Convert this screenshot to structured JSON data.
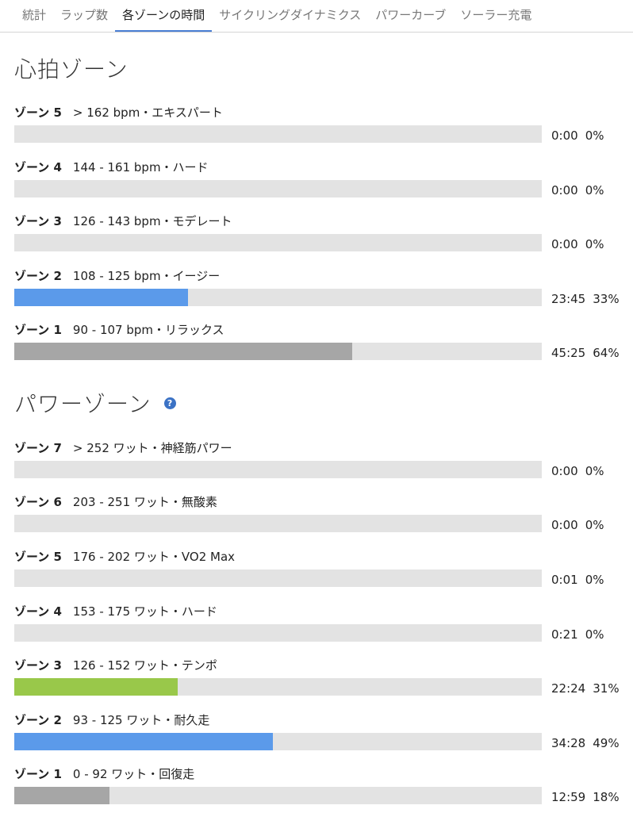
{
  "tabs": [
    {
      "label": "統計",
      "active": false
    },
    {
      "label": "ラップ数",
      "active": false
    },
    {
      "label": "各ゾーンの時間",
      "active": true
    },
    {
      "label": "サイクリングダイナミクス",
      "active": false
    },
    {
      "label": "パワーカーブ",
      "active": false
    },
    {
      "label": "ソーラー充電",
      "active": false
    }
  ],
  "colors": {
    "accent": "#4a7fd4",
    "bar_track": "#e3e3e3",
    "bar_gray": "#a6a6a6",
    "bar_blue": "#5b9aea",
    "bar_green": "#99c84a",
    "help_icon": "#3b72c5"
  },
  "heart_rate": {
    "title": "心拍ゾーン",
    "zones": [
      {
        "name": "ゾーン 5",
        "range": "> 162 bpm・エキスパート",
        "time": "0:00",
        "percent": "0%",
        "fill_fraction": 0.0,
        "color": "#a6a6a6"
      },
      {
        "name": "ゾーン 4",
        "range": "144 - 161 bpm・ハード",
        "time": "0:00",
        "percent": "0%",
        "fill_fraction": 0.0,
        "color": "#a6a6a6"
      },
      {
        "name": "ゾーン 3",
        "range": "126 - 143 bpm・モデレート",
        "time": "0:00",
        "percent": "0%",
        "fill_fraction": 0.0,
        "color": "#a6a6a6"
      },
      {
        "name": "ゾーン 2",
        "range": "108 - 125 bpm・イージー",
        "time": "23:45",
        "percent": "33%",
        "fill_fraction": 0.33,
        "color": "#5b9aea"
      },
      {
        "name": "ゾーン 1",
        "range": "90 - 107 bpm・リラックス",
        "time": "45:25",
        "percent": "64%",
        "fill_fraction": 0.64,
        "color": "#a6a6a6"
      }
    ]
  },
  "power": {
    "title": "パワーゾーン",
    "help_icon": "question-circle-icon",
    "help_glyph": "?",
    "zones": [
      {
        "name": "ゾーン 7",
        "range": "> 252 ワット・神経筋パワー",
        "time": "0:00",
        "percent": "0%",
        "fill_fraction": 0.0,
        "color": "#a6a6a6"
      },
      {
        "name": "ゾーン 6",
        "range": "203 - 251 ワット・無酸素",
        "time": "0:00",
        "percent": "0%",
        "fill_fraction": 0.0,
        "color": "#a6a6a6"
      },
      {
        "name": "ゾーン 5",
        "range": "176 - 202 ワット・VO2 Max",
        "time": "0:01",
        "percent": "0%",
        "fill_fraction": 0.0,
        "color": "#a6a6a6"
      },
      {
        "name": "ゾーン 4",
        "range": "153 - 175 ワット・ハード",
        "time": "0:21",
        "percent": "0%",
        "fill_fraction": 0.0,
        "color": "#a6a6a6"
      },
      {
        "name": "ゾーン 3",
        "range": "126 - 152 ワット・テンポ",
        "time": "22:24",
        "percent": "31%",
        "fill_fraction": 0.31,
        "color": "#99c84a"
      },
      {
        "name": "ゾーン 2",
        "range": "93 - 125 ワット・耐久走",
        "time": "34:28",
        "percent": "49%",
        "fill_fraction": 0.49,
        "color": "#5b9aea"
      },
      {
        "name": "ゾーン 1",
        "range": "0 - 92 ワット・回復走",
        "time": "12:59",
        "percent": "18%",
        "fill_fraction": 0.18,
        "color": "#a6a6a6"
      }
    ]
  }
}
